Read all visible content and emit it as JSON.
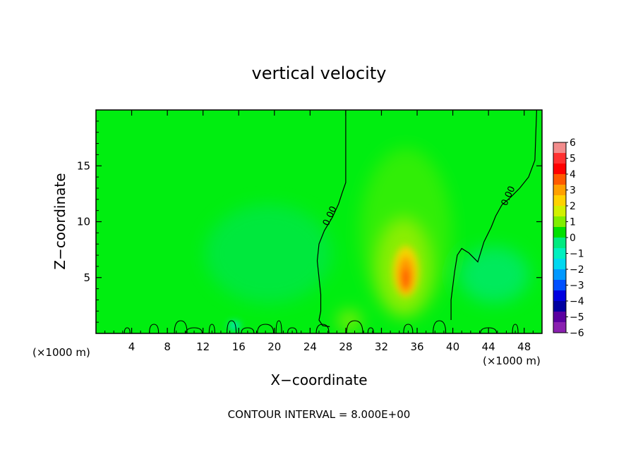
{
  "chart_data": {
    "type": "heatmap",
    "title": "vertical velocity",
    "xlabel": "X−coordinate",
    "ylabel": "Z−coordinate",
    "x_unit": "(×1000 m)",
    "xlim": [
      0,
      50
    ],
    "ylim": [
      0,
      20
    ],
    "x_ticks": [
      4,
      8,
      12,
      16,
      20,
      24,
      28,
      32,
      36,
      40,
      44,
      48
    ],
    "y_ticks": [
      5,
      10,
      15
    ],
    "colorbar": {
      "labels": [
        "6",
        "5",
        "4",
        "3",
        "2",
        "1",
        "0",
        "−1",
        "−2",
        "−3",
        "−4",
        "−5",
        "−6"
      ],
      "colors": [
        "#f28c8c",
        "#ff3030",
        "#ff0000",
        "#ff5a00",
        "#ffa000",
        "#ffd200",
        "#d2f000",
        "#80ee00",
        "#00e000",
        "#00ea80",
        "#00f0c0",
        "#00d8f0",
        "#0098ff",
        "#0050ff",
        "#0000e0",
        "#0000a0",
        "#5a00a0",
        "#8a20b0"
      ]
    },
    "contours": [
      {
        "label": "0.00",
        "x": [
          28.0,
          28.0,
          27.6,
          27.2,
          26.5,
          25.6,
          25.0,
          24.8,
          25.0,
          25.2,
          25.2,
          25.0,
          25.4,
          26.2
        ],
        "y": [
          20,
          13.5,
          12.6,
          11.6,
          10.4,
          9.2,
          8.0,
          6.5,
          5.0,
          3.5,
          2.0,
          1.2,
          0.7,
          0.6
        ]
      },
      {
        "label": "0.00",
        "x": [
          49.4,
          49.2,
          48.5,
          47.5,
          46.5,
          45.5,
          44.8,
          44.3,
          43.5,
          42.8,
          41.8,
          41.0,
          40.5,
          40.2,
          39.8,
          39.8
        ],
        "y": [
          20,
          15.5,
          14.0,
          13.0,
          12.2,
          11.5,
          10.5,
          9.5,
          8.2,
          6.4,
          7.2,
          7.6,
          7.0,
          5.5,
          3.0,
          1.2
        ]
      }
    ],
    "contour_interval_text": "CONTOUR INTERVAL = 8.000E+00"
  }
}
